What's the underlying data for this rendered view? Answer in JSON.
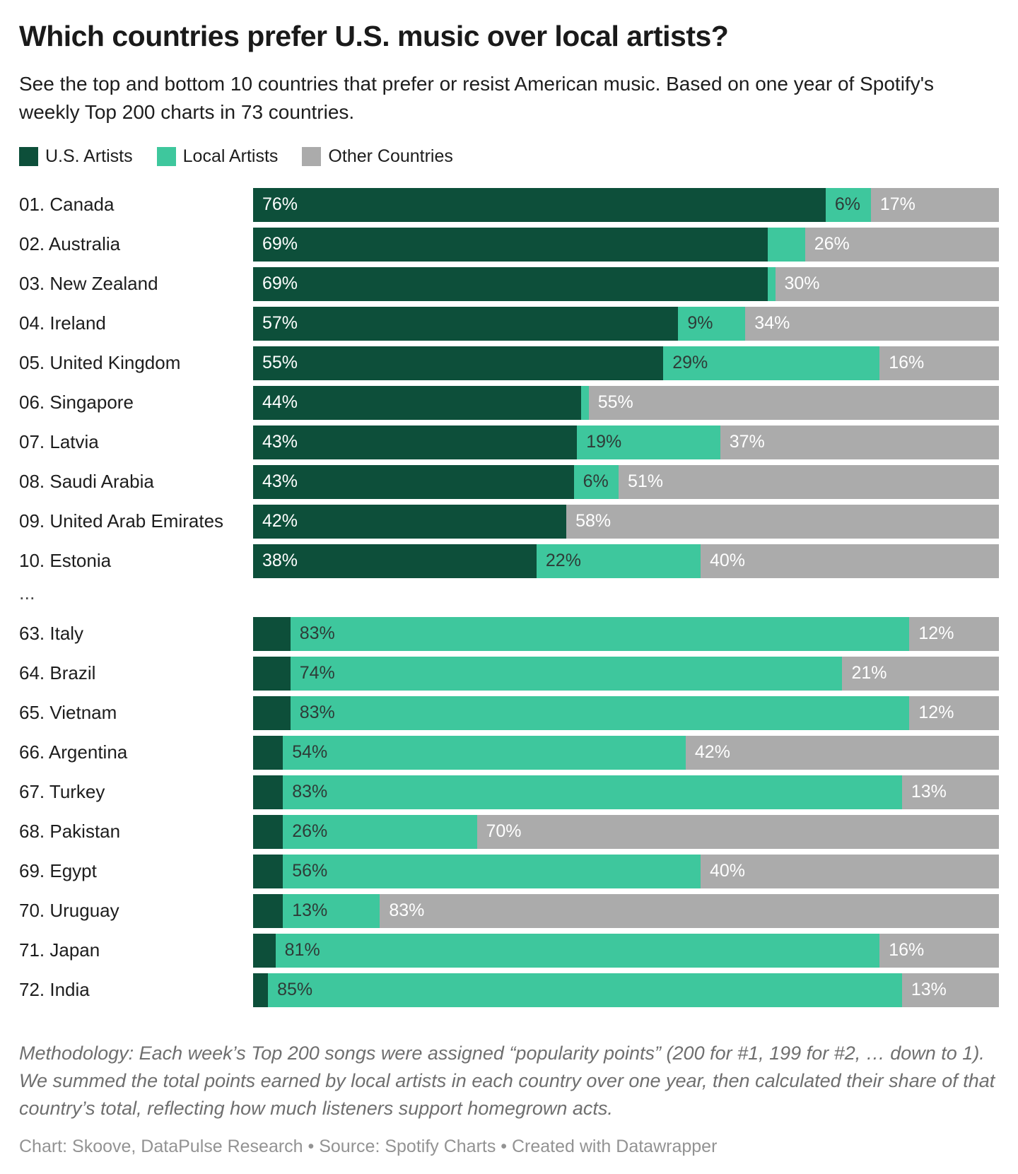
{
  "title": "Which countries prefer U.S. music over local artists?",
  "subtitle": "See the top and bottom 10 countries that prefer or resist American music. Based on one year of Spotify's weekly Top 200 charts in 73 countries.",
  "legend": [
    {
      "name": "U.S. Artists",
      "color": "#0d4f3a"
    },
    {
      "name": "Local Artists",
      "color": "#3ec79d"
    },
    {
      "name": "Other Countries",
      "color": "#ababab"
    }
  ],
  "separator": "...",
  "chart_data": {
    "type": "bar",
    "orientation": "horizontal",
    "stacked": true,
    "unit": "%",
    "xlim": [
      0,
      100
    ],
    "grid": false,
    "legend_position": "top",
    "series_names": [
      "U.S. Artists",
      "Local Artists",
      "Other Countries"
    ],
    "series_colors": [
      "#0d4f3a",
      "#3ec79d",
      "#ababab"
    ],
    "series_keys": [
      "us-artists",
      "local-artists",
      "other-countries"
    ],
    "label_text_colors": [
      "#ffffff",
      "#2e3b37",
      "#ffffff"
    ],
    "top_rows": [
      {
        "rank": "01.",
        "country": "Canada",
        "values": [
          76,
          6,
          17
        ],
        "labels": [
          "76%",
          "6%",
          "17%"
        ]
      },
      {
        "rank": "02.",
        "country": "Australia",
        "values": [
          69,
          5,
          26
        ],
        "labels": [
          "69%",
          "",
          "26%"
        ]
      },
      {
        "rank": "03.",
        "country": "New Zealand",
        "values": [
          69,
          1,
          30
        ],
        "labels": [
          "69%",
          "",
          "30%"
        ]
      },
      {
        "rank": "04.",
        "country": "Ireland",
        "values": [
          57,
          9,
          34
        ],
        "labels": [
          "57%",
          "9%",
          "34%"
        ]
      },
      {
        "rank": "05.",
        "country": "United Kingdom",
        "values": [
          55,
          29,
          16
        ],
        "labels": [
          "55%",
          "29%",
          "16%"
        ]
      },
      {
        "rank": "06.",
        "country": "Singapore",
        "values": [
          44,
          1,
          55
        ],
        "labels": [
          "44%",
          "",
          "55%"
        ]
      },
      {
        "rank": "07.",
        "country": "Latvia",
        "values": [
          43,
          19,
          37
        ],
        "labels": [
          "43%",
          "19%",
          "37%"
        ]
      },
      {
        "rank": "08.",
        "country": "Saudi Arabia",
        "values": [
          43,
          6,
          51
        ],
        "labels": [
          "43%",
          "6%",
          "51%"
        ]
      },
      {
        "rank": "09.",
        "country": "United Arab Emirates",
        "values": [
          42,
          0,
          58
        ],
        "labels": [
          "42%",
          "",
          "58%"
        ]
      },
      {
        "rank": "10.",
        "country": "Estonia",
        "values": [
          38,
          22,
          40
        ],
        "labels": [
          "38%",
          "22%",
          "40%"
        ]
      }
    ],
    "bottom_rows": [
      {
        "rank": "63.",
        "country": "Italy",
        "values": [
          5,
          83,
          12
        ],
        "labels": [
          "",
          "83%",
          "12%"
        ]
      },
      {
        "rank": "64.",
        "country": "Brazil",
        "values": [
          5,
          74,
          21
        ],
        "labels": [
          "",
          "74%",
          "21%"
        ]
      },
      {
        "rank": "65.",
        "country": "Vietnam",
        "values": [
          5,
          83,
          12
        ],
        "labels": [
          "",
          "83%",
          "12%"
        ]
      },
      {
        "rank": "66.",
        "country": "Argentina",
        "values": [
          4,
          54,
          42
        ],
        "labels": [
          "",
          "54%",
          "42%"
        ]
      },
      {
        "rank": "67.",
        "country": "Turkey",
        "values": [
          4,
          83,
          13
        ],
        "labels": [
          "",
          "83%",
          "13%"
        ]
      },
      {
        "rank": "68.",
        "country": "Pakistan",
        "values": [
          4,
          26,
          70
        ],
        "labels": [
          "",
          "26%",
          "70%"
        ]
      },
      {
        "rank": "69.",
        "country": "Egypt",
        "values": [
          4,
          56,
          40
        ],
        "labels": [
          "",
          "56%",
          "40%"
        ]
      },
      {
        "rank": "70.",
        "country": "Uruguay",
        "values": [
          4,
          13,
          83
        ],
        "labels": [
          "",
          "13%",
          "83%"
        ]
      },
      {
        "rank": "71.",
        "country": "Japan",
        "values": [
          3,
          81,
          16
        ],
        "labels": [
          "",
          "81%",
          "16%"
        ]
      },
      {
        "rank": "72.",
        "country": "India",
        "values": [
          2,
          85,
          13
        ],
        "labels": [
          "",
          "85%",
          "13%"
        ]
      }
    ]
  },
  "methodology": "Methodology: Each week’s Top 200 songs were assigned “popularity points” (200 for #1, 199 for #2, … down to 1). We summed the total points earned by local artists in each country over one year, then calculated their share of that country’s total, reflecting how much listeners support homegrown acts.",
  "footer": "Chart: Skoove, DataPulse Research • Source: Spotify Charts • Created with Datawrapper"
}
